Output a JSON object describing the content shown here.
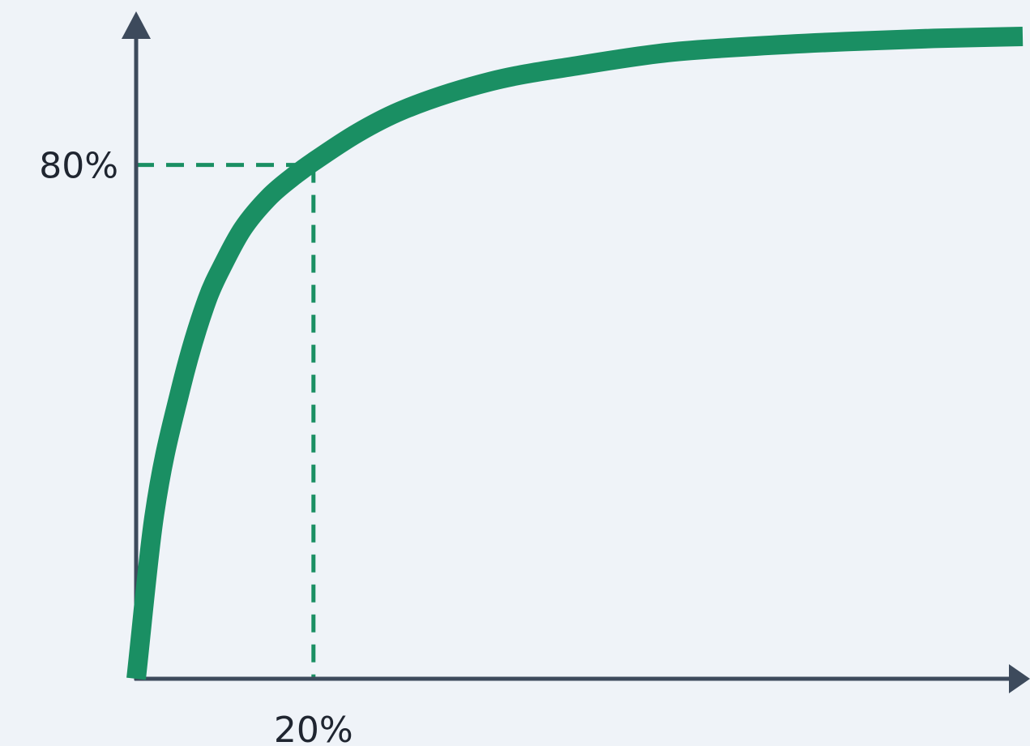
{
  "chart_data": {
    "type": "line",
    "title": "",
    "xlabel": "",
    "ylabel": "",
    "xlim": [
      0,
      100
    ],
    "ylim": [
      0,
      100
    ],
    "grid": false,
    "x_ticks": [
      {
        "value": 20,
        "label": "20%"
      }
    ],
    "y_ticks": [
      {
        "value": 80,
        "label": "80%"
      }
    ],
    "series": [
      {
        "x": [
          0,
          2,
          5,
          8,
          10,
          12,
          15,
          18,
          20,
          25,
          30,
          40,
          50,
          60,
          70,
          80,
          90,
          100
        ],
        "y": [
          0,
          25,
          45,
          59,
          65,
          70,
          75,
          78.5,
          80.5,
          85,
          88.5,
          93,
          95.5,
          97.5,
          98.5,
          99.2,
          99.7,
          100
        ]
      }
    ],
    "reference_point": {
      "x": 20,
      "y": 80
    },
    "colors": {
      "curve": "#1a8f63",
      "guide": "#1a8f63",
      "axis": "#3d4a5c",
      "text": "#1f2530",
      "background": "#eff3f8"
    }
  }
}
